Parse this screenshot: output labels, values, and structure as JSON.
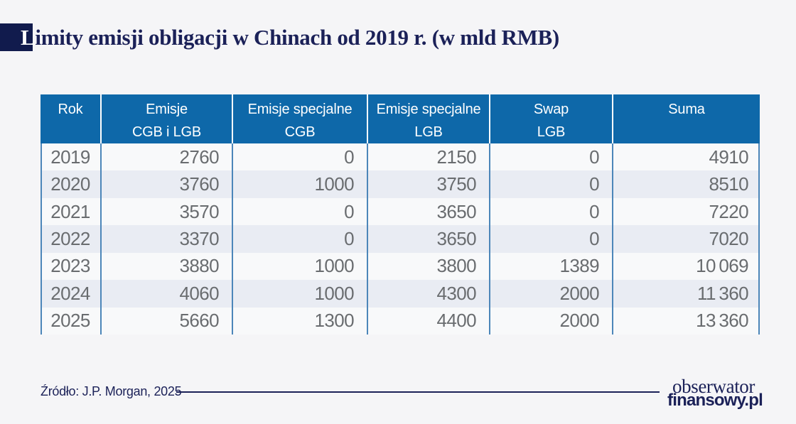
{
  "title": {
    "first_letter": "L",
    "rest": "imity emisji obligacji w Chinach od 2019 r. (w mld RMB)"
  },
  "table": {
    "columns": [
      {
        "line1": "Rok",
        "line2": ""
      },
      {
        "line1": "Emisje",
        "line2": "CGB i LGB"
      },
      {
        "line1": "Emisje specjalne",
        "line2": "CGB"
      },
      {
        "line1": "Emisje specjalne",
        "line2": "LGB"
      },
      {
        "line1": "Swap",
        "line2": "LGB"
      },
      {
        "line1": "Suma",
        "line2": ""
      }
    ],
    "rows": [
      [
        "2019",
        "2760",
        "0",
        "2150",
        "0",
        "4910"
      ],
      [
        "2020",
        "3760",
        "1000",
        "3750",
        "0",
        "8510"
      ],
      [
        "2021",
        "3570",
        "0",
        "3650",
        "0",
        "7220"
      ],
      [
        "2022",
        "3370",
        "0",
        "3650",
        "0",
        "7020"
      ],
      [
        "2023",
        "3880",
        "1000",
        "3800",
        "1389",
        "10 069"
      ],
      [
        "2024",
        "4060",
        "1000",
        "4300",
        "2000",
        "11 360"
      ],
      [
        "2025",
        "5660",
        "1300",
        "4400",
        "2000",
        "13 360"
      ]
    ]
  },
  "chart_data": {
    "type": "table",
    "title": "Limity emisji obligacji w Chinach od 2019 r. (w mld RMB)",
    "columns": [
      "Rok",
      "Emisje CGB i LGB",
      "Emisje specjalne CGB",
      "Emisje specjalne LGB",
      "Swap LGB",
      "Suma"
    ],
    "rows": [
      [
        2019,
        2760,
        0,
        2150,
        0,
        4910
      ],
      [
        2020,
        3760,
        1000,
        3750,
        0,
        8510
      ],
      [
        2021,
        3570,
        0,
        3650,
        0,
        7220
      ],
      [
        2022,
        3370,
        0,
        3650,
        0,
        7020
      ],
      [
        2023,
        3880,
        1000,
        3800,
        1389,
        10069
      ],
      [
        2024,
        4060,
        1000,
        4300,
        2000,
        11360
      ],
      [
        2025,
        5660,
        1300,
        4400,
        2000,
        13360
      ]
    ],
    "source": "Źródło: J.P. Morgan, 2025"
  },
  "footer": {
    "source": "Źródło: J.P. Morgan, 2025",
    "logo_line1": "obserwator",
    "logo_line2": "finansowy.pl"
  },
  "colors": {
    "page_background": "#f5f5f7",
    "title_navy": "#1b2158",
    "title_flag": "#111b4d",
    "header_blue": "#0e68a9",
    "row_light": "#f8f9fa",
    "row_shaded": "#e9ecf3",
    "divider_blue": "#4c86b9",
    "value_gray": "#696c6f"
  }
}
